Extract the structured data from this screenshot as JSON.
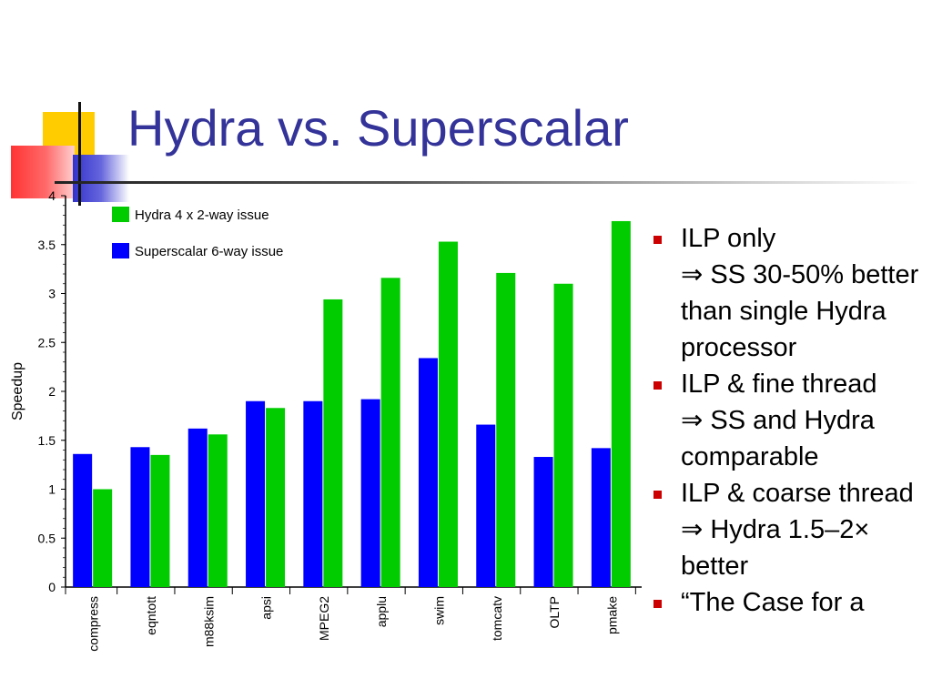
{
  "slide": {
    "title": "Hydra vs. Superscalar"
  },
  "bullets": [
    {
      "type": "bullet",
      "text": "ILP only"
    },
    {
      "type": "sub",
      "text": "⇒ SS 30-50% better than single Hydra processor"
    },
    {
      "type": "bullet",
      "text": "ILP & fine thread"
    },
    {
      "type": "sub",
      "text": "⇒ SS and Hydra comparable"
    },
    {
      "type": "bullet",
      "text": "ILP & coarse thread"
    },
    {
      "type": "sub",
      "text": "⇒ Hydra 1.5–2× better"
    },
    {
      "type": "bullet",
      "text": "“The Case for a"
    }
  ],
  "colors": {
    "title": "#333399",
    "hydra": "#00cc00",
    "superscalar": "#0000ff",
    "bullet_marker": "#cc0000"
  },
  "chart_data": {
    "type": "bar",
    "ylabel": "Speedup",
    "ylim": [
      0,
      4
    ],
    "yticks": [
      "0",
      "0.5",
      "1",
      "1.5",
      "2",
      "2.5",
      "3",
      "3.5",
      "4"
    ],
    "categories": [
      "compress",
      "eqntott",
      "m88ksim",
      "apsi",
      "MPEG2",
      "applu",
      "swim",
      "tomcatv",
      "OLTP",
      "pmake"
    ],
    "series": [
      {
        "name": "Superscalar 6-way issue",
        "color": "#0000ff",
        "values": [
          1.36,
          1.43,
          1.62,
          1.9,
          1.9,
          1.92,
          2.34,
          1.66,
          1.33,
          1.42
        ]
      },
      {
        "name": "Hydra 4 x 2-way issue",
        "color": "#00cc00",
        "values": [
          1.0,
          1.35,
          1.56,
          1.83,
          2.94,
          3.16,
          3.53,
          3.21,
          3.1,
          3.74
        ]
      }
    ],
    "legend": [
      {
        "label": "Hydra 4 x 2-way issue",
        "color": "#00cc00"
      },
      {
        "label": "Superscalar 6-way issue",
        "color": "#0000ff"
      }
    ],
    "legend_position": "top-left",
    "grid": false
  }
}
